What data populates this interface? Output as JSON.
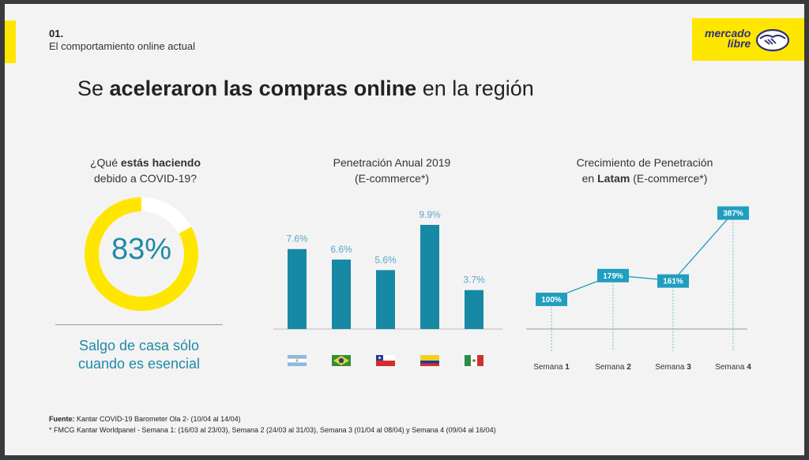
{
  "section": {
    "number": "01.",
    "subtitle": "El comportamiento online actual"
  },
  "brand": {
    "line1": "mercado",
    "line2": "libre",
    "yellow": "#ffe600",
    "navy": "#2d3277"
  },
  "headline": {
    "pre": "Se ",
    "bold": "aceleraron las compras online",
    "post": " en la región"
  },
  "survey": {
    "title_pre": "¿Qué ",
    "title_bold": "estás haciendo",
    "title_line2": "debido a COVID-19?",
    "value": "83%",
    "percent": 83,
    "answer_line1": "Salgo de casa sólo",
    "answer_line2": "cuando es esencial",
    "ring_color": "#ffe600"
  },
  "penetration_title": {
    "line1": "Penetración Anual 2019",
    "line2": "(E-commerce*)"
  },
  "growth_title": {
    "line1": "Crecimiento de Penetración",
    "line2_pre": "en ",
    "line2_bold": "Latam",
    "line2_post": " (E-commerce*)"
  },
  "chart_data": [
    {
      "type": "bar",
      "title": "Penetración Anual 2019 (E-commerce*)",
      "categories": [
        "argentina-flag",
        "brazil-flag",
        "chile-flag",
        "colombia-flag",
        "mexico-flag"
      ],
      "values": [
        7.6,
        6.6,
        5.6,
        9.9,
        3.7
      ],
      "labels": [
        "7.6%",
        "6.6%",
        "5.6%",
        "9.9%",
        "3.7%"
      ],
      "ylim": [
        0,
        10.5
      ],
      "bar_color": "#1789a4"
    },
    {
      "type": "line",
      "title": "Crecimiento de Penetración en Latam (E-commerce*)",
      "x": [
        "Semana 1",
        "Semana 2",
        "Semana 3",
        "Semana 4"
      ],
      "x_prefix": "Semana",
      "x_numbers": [
        "1",
        "2",
        "3",
        "4"
      ],
      "values": [
        100,
        179,
        161,
        387
      ],
      "labels": [
        "100%",
        "179%",
        "161%",
        "387%"
      ],
      "ylim": [
        0,
        420
      ],
      "line_color": "#1f9ec0"
    }
  ],
  "footer": {
    "source_label": "Fuente:",
    "source_text": " Kantar  COVID-19 Barometer Ola 2- (10/04 al 14/04)",
    "note": "* FMCG Kantar Worldpanel - Semana 1: (16/03 al 23/03), Semana 2 (24/03 al 31/03), Semana 3 (01/04 al 08/04) y Semana 4 (09/04 al 16/04)"
  }
}
